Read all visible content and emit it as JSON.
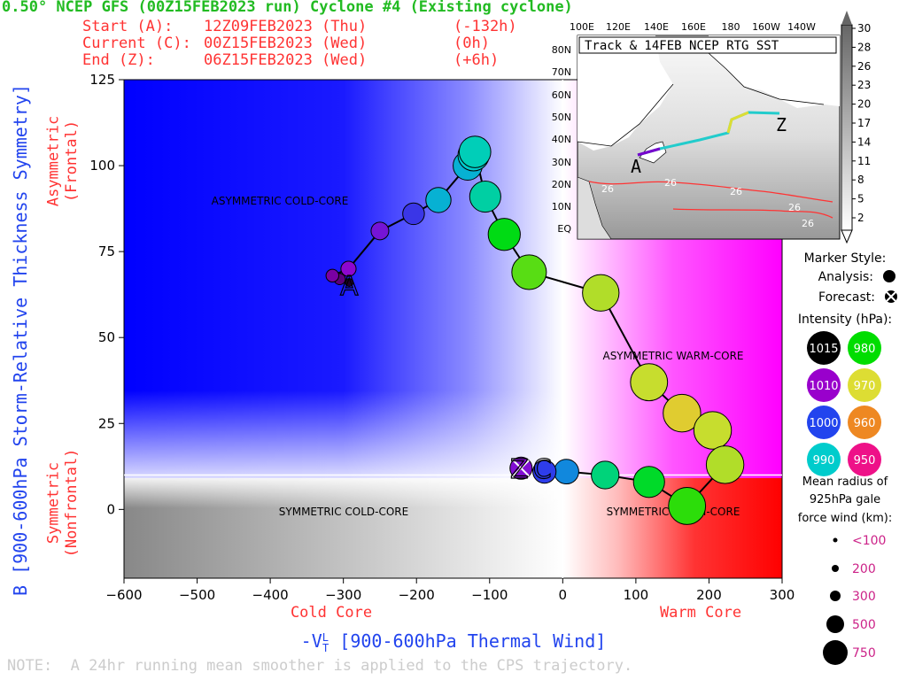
{
  "header": {
    "title": "0.50° NCEP GFS (00Z15FEB2023 run) Cyclone #4 (Existing cyclone)",
    "start": {
      "label": "Start (A):",
      "date": "12Z09FEB2023 (Thu)",
      "offset": "(-132h)"
    },
    "current": {
      "label": "Current (C):",
      "date": "00Z15FEB2023 (Wed)",
      "offset": "(0h)"
    },
    "end": {
      "label": "End (Z):",
      "date": "06Z15FEB2023 (Wed)",
      "offset": "(+6h)"
    }
  },
  "chart_data": {
    "type": "scatter",
    "xlabel": "-V_T^L [900-600hPa Thermal Wind]",
    "ylabel": "B [900-600hPa Storm-Relative Thickness Symmetry]",
    "xlim": [
      -600,
      300
    ],
    "ylim": [
      -20,
      125
    ],
    "xticks": [
      -600,
      -500,
      -400,
      -300,
      -200,
      -100,
      0,
      100,
      200,
      300
    ],
    "yticks": [
      0,
      25,
      50,
      75,
      100,
      125
    ],
    "x_side_labels": {
      "left": "Cold Core",
      "right": "Warm Core"
    },
    "y_side_labels": {
      "top": "Asymmetric\n(Frontal)",
      "bottom": "Symmetric\n(Nonfrontal)"
    },
    "quadrant_labels": [
      "ASYMMETRIC COLD-CORE",
      "ASYMMETRIC WARM-CORE",
      "SYMMETRIC COLD-CORE",
      "SYMMETRIC WARM-CORE"
    ],
    "track": [
      {
        "x": -292,
        "y": 66,
        "pressure": 1014,
        "radius_km": 50
      },
      {
        "x": -305,
        "y": 67,
        "pressure": 1012,
        "radius_km": 120
      },
      {
        "x": -315,
        "y": 68,
        "pressure": 1011,
        "radius_km": 150
      },
      {
        "x": -293,
        "y": 70,
        "pressure": 1009,
        "radius_km": 200
      },
      {
        "x": -250,
        "y": 81,
        "pressure": 1007,
        "radius_km": 250
      },
      {
        "x": -204,
        "y": 86,
        "pressure": 1002,
        "radius_km": 330
      },
      {
        "x": -170,
        "y": 90,
        "pressure": 992,
        "radius_km": 400
      },
      {
        "x": -130,
        "y": 100,
        "pressure": 992,
        "radius_km": 480
      },
      {
        "x": -122,
        "y": 103,
        "pressure": 990,
        "radius_km": 520
      },
      {
        "x": -120,
        "y": 104,
        "pressure": 989,
        "radius_km": 530
      },
      {
        "x": -106,
        "y": 91,
        "pressure": 988,
        "radius_km": 520
      },
      {
        "x": -80,
        "y": 80,
        "pressure": 981,
        "radius_km": 540
      },
      {
        "x": -46,
        "y": 69,
        "pressure": 976,
        "radius_km": 590
      },
      {
        "x": 52,
        "y": 63,
        "pressure": 972,
        "radius_km": 630
      },
      {
        "x": 118,
        "y": 37,
        "pressure": 971,
        "radius_km": 640
      },
      {
        "x": 163,
        "y": 28,
        "pressure": 968,
        "radius_km": 650
      },
      {
        "x": 205,
        "y": 23,
        "pressure": 971,
        "radius_km": 650
      },
      {
        "x": 222,
        "y": 13,
        "pressure": 972,
        "radius_km": 650
      },
      {
        "x": 170,
        "y": 1,
        "pressure": 978,
        "radius_km": 640
      },
      {
        "x": 118,
        "y": 8,
        "pressure": 982,
        "radius_km": 520
      },
      {
        "x": 58,
        "y": 10,
        "pressure": 986,
        "radius_km": 450
      },
      {
        "x": 5,
        "y": 11,
        "pressure": 995,
        "radius_km": 390
      },
      {
        "x": -25,
        "y": 11,
        "pressure": 1001,
        "radius_km": 360
      },
      {
        "x": -57,
        "y": 12,
        "pressure": 1008,
        "radius_km": 340,
        "forecast": true
      }
    ],
    "markers": {
      "start": "A",
      "current": "C",
      "end": "Z"
    }
  },
  "inset": {
    "title": "Track & 14FEB NCEP RTG SST",
    "lon_labels": [
      "100E",
      "120E",
      "140E",
      "160E",
      "180",
      "160W",
      "140W"
    ],
    "lat_labels": [
      "80N",
      "70N",
      "60N",
      "50N",
      "40N",
      "30N",
      "20N",
      "10N",
      "EQ"
    ],
    "sst_contour_label": "26",
    "colorbar_ticks": [
      "30",
      "28",
      "26",
      "23",
      "20",
      "17",
      "14",
      "11",
      "8",
      "5",
      "2"
    ]
  },
  "legend": {
    "marker_style_title": "Marker Style:",
    "analysis_label": "Analysis:",
    "forecast_label": "Forecast:",
    "intensity_title": "Intensity (hPa):",
    "intensity": [
      {
        "value": "1015",
        "color": "#000000"
      },
      {
        "value": "980",
        "color": "#00dd00"
      },
      {
        "value": "1010",
        "color": "#9900cc"
      },
      {
        "value": "970",
        "color": "#dddd33"
      },
      {
        "value": "1000",
        "color": "#2244ee"
      },
      {
        "value": "960",
        "color": "#ee8822"
      },
      {
        "value": "990",
        "color": "#00cccc"
      },
      {
        "value": "950",
        "color": "#ee1188"
      }
    ],
    "radius_title": "Mean radius of\n925hPa gale\nforce wind (km):",
    "radius_sizes": [
      "<100",
      "200",
      "300",
      "500",
      "750"
    ]
  },
  "note": "NOTE:  A 24hr running mean smoother is applied to the CPS trajectory."
}
